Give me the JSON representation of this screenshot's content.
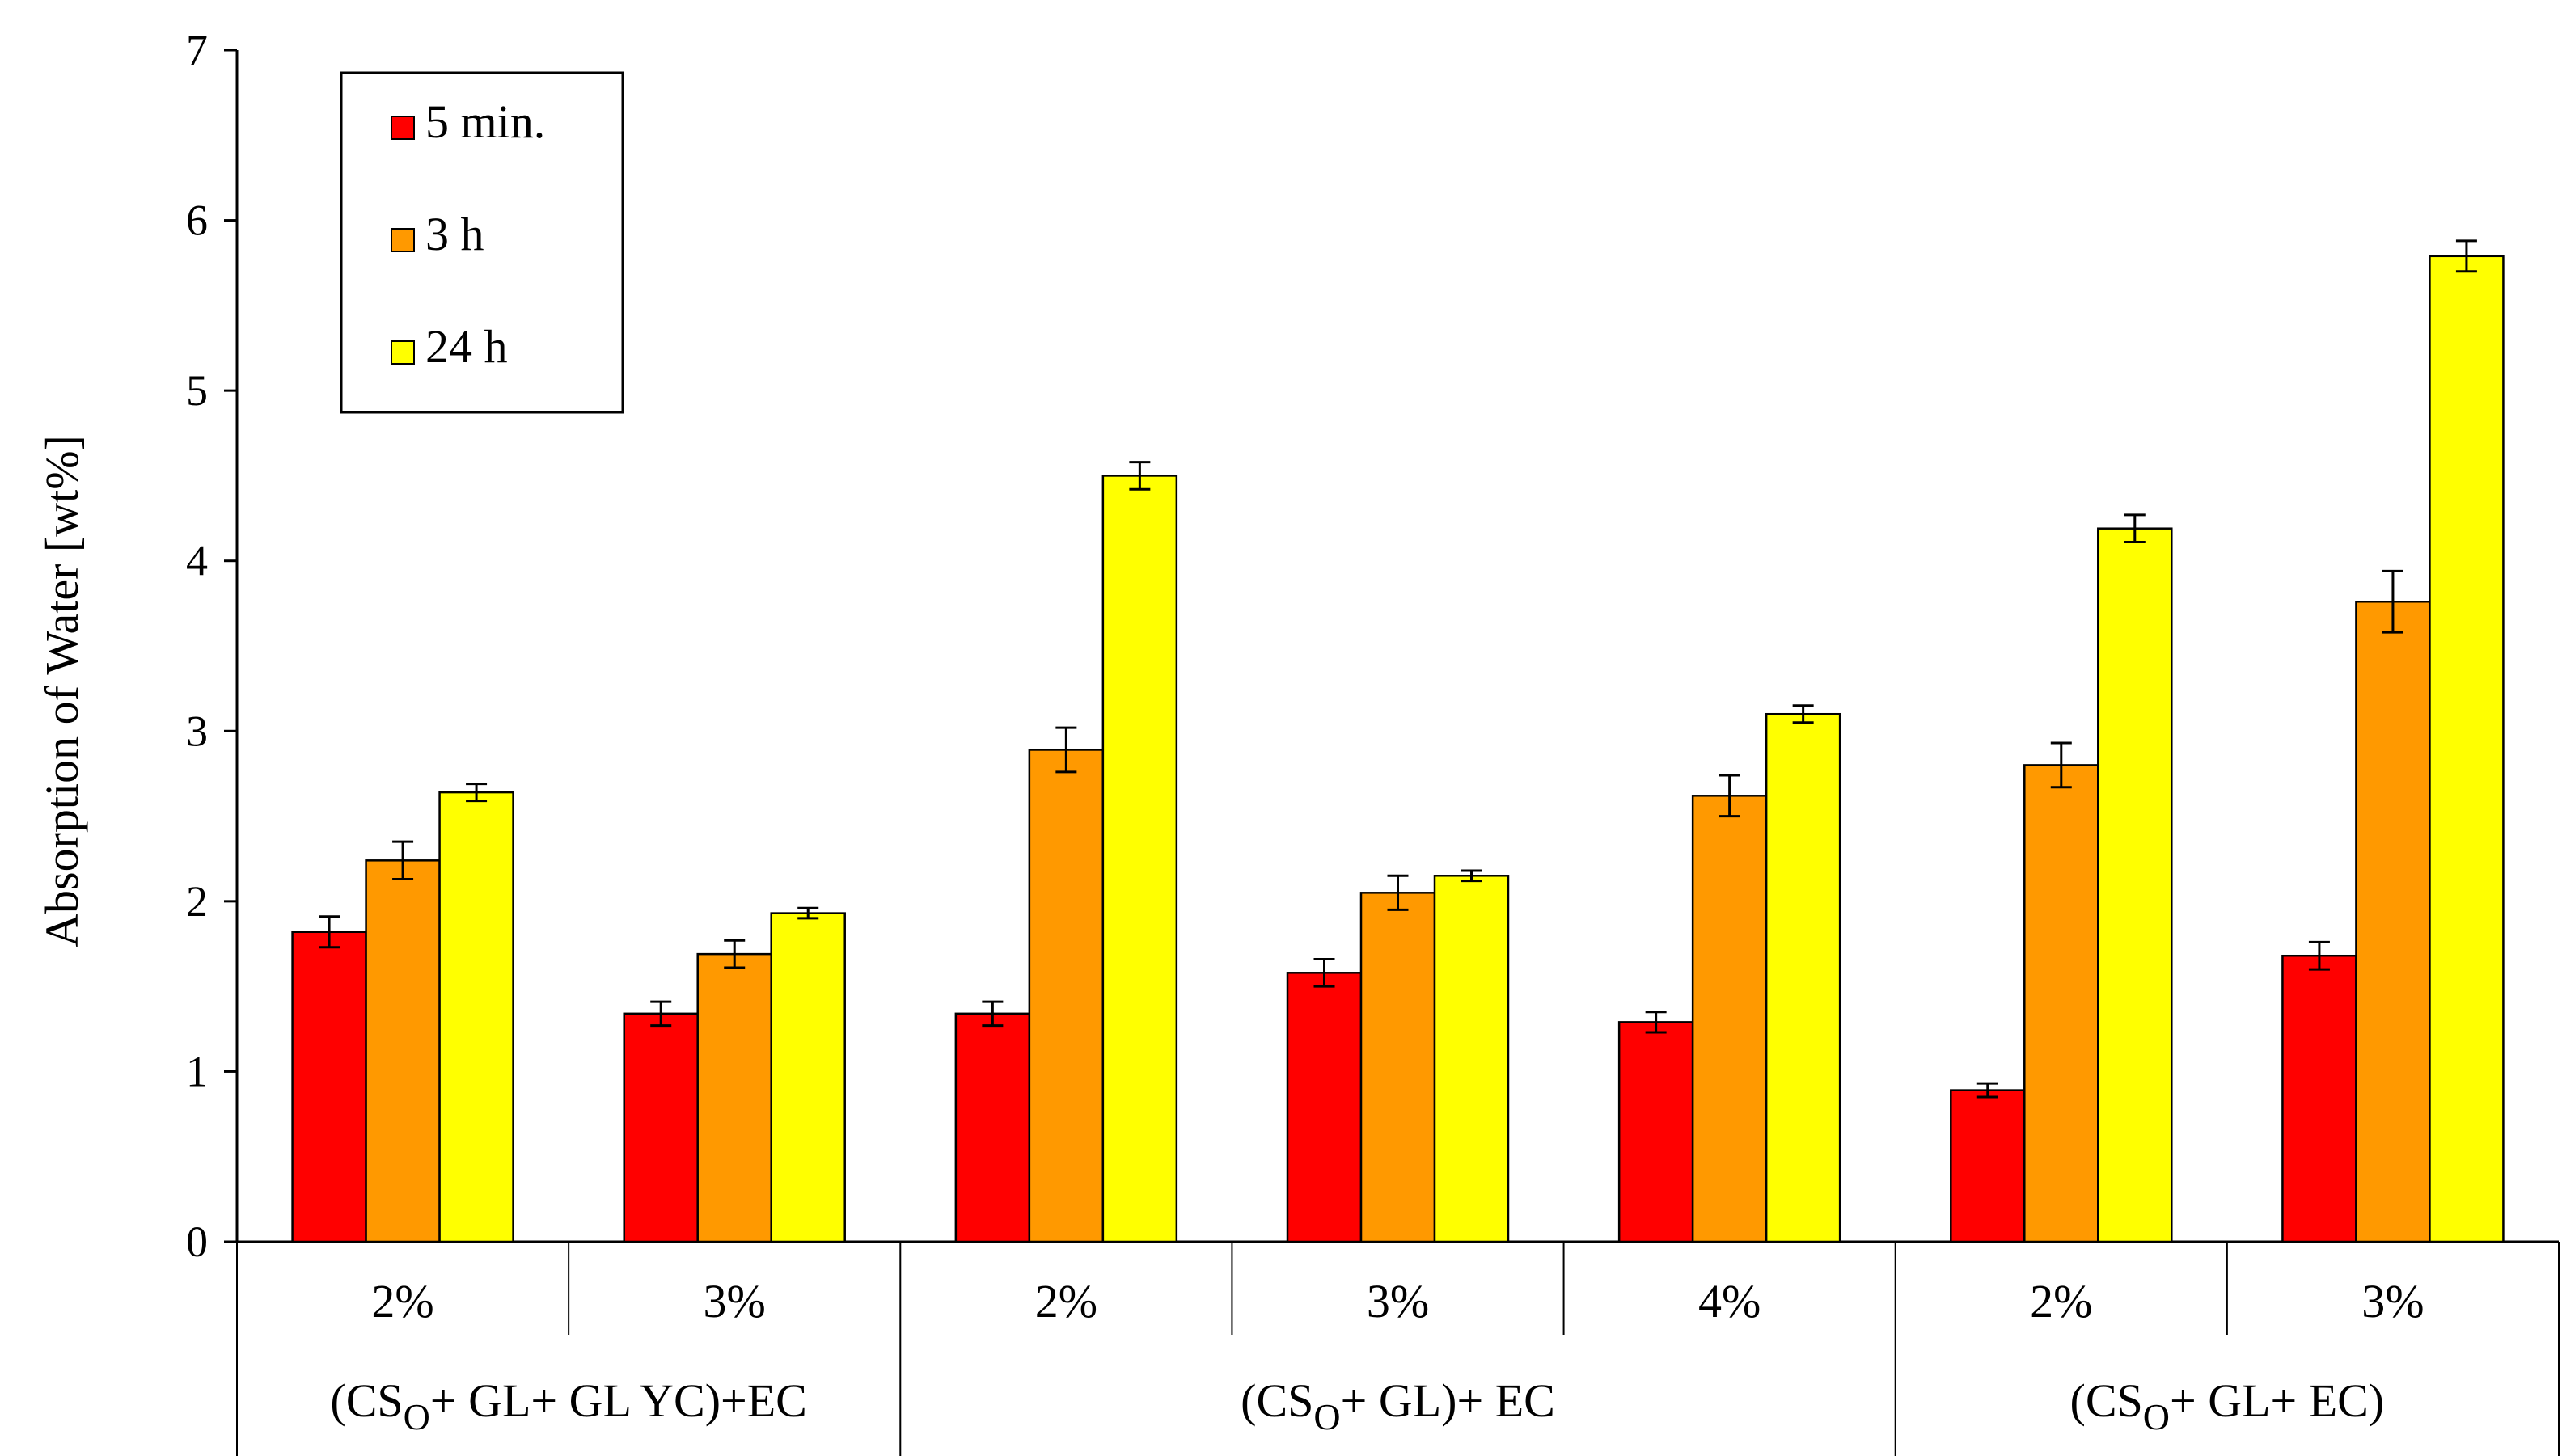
{
  "chart_data": {
    "type": "bar",
    "title": "",
    "xlabel": "",
    "ylabel": "Absorption of  Water [wt%]",
    "ylim": [
      0,
      7
    ],
    "yticks": [
      0,
      1,
      2,
      3,
      4,
      5,
      6,
      7
    ],
    "yticks_text": [
      "0",
      "1",
      "2",
      "3",
      "4",
      "5",
      "6",
      "7"
    ],
    "grid": false,
    "legend_position": "top-left",
    "categories": [
      "2%",
      "3%",
      "2%",
      "3%",
      "4%",
      "2%",
      "3%"
    ],
    "groups": [
      {
        "label_main": "(CS",
        "label_sub": "O",
        "label_tail": "+ GL+ GL YC)+EC",
        "span": [
          0,
          1
        ]
      },
      {
        "label_main": "(CS",
        "label_sub": "O",
        "label_tail": "+ GL)+ EC",
        "span": [
          2,
          4
        ]
      },
      {
        "label_main": "(CS",
        "label_sub": "O",
        "label_tail": "+ GL+ EC)",
        "span": [
          5,
          6
        ]
      }
    ],
    "series": [
      {
        "name": "5 min.",
        "color": "#ff0000",
        "values": [
          1.82,
          1.34,
          1.34,
          1.58,
          1.29,
          0.89,
          1.68
        ],
        "errors": [
          0.09,
          0.07,
          0.07,
          0.08,
          0.06,
          0.04,
          0.08
        ]
      },
      {
        "name": "3 h",
        "color": "#ff9900",
        "values": [
          2.24,
          1.69,
          2.89,
          2.05,
          2.62,
          2.8,
          3.76
        ],
        "errors": [
          0.11,
          0.08,
          0.13,
          0.1,
          0.12,
          0.13,
          0.18
        ]
      },
      {
        "name": "24 h",
        "color": "#ffff00",
        "values": [
          2.64,
          1.93,
          4.5,
          2.15,
          3.1,
          4.19,
          5.79
        ],
        "errors": [
          0.05,
          0.03,
          0.08,
          0.03,
          0.05,
          0.08,
          0.09
        ]
      }
    ]
  }
}
